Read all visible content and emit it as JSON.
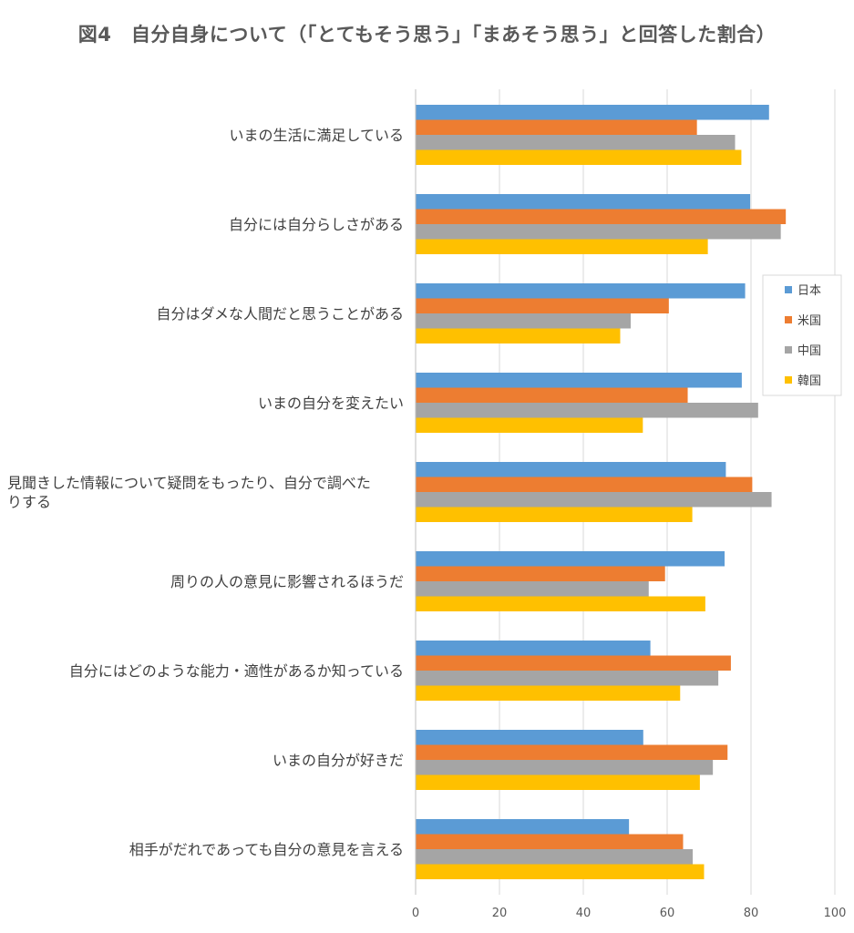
{
  "chart_data": {
    "type": "bar",
    "orientation": "horizontal",
    "title": "図4　自分自身について（「とてもそう思う」「まあそう思う」と回答した割合）",
    "xlabel": "",
    "ylabel": "",
    "xlim": [
      0,
      100
    ],
    "x_ticks": [
      0,
      20,
      40,
      60,
      80,
      100
    ],
    "grid": true,
    "legend_position": "right",
    "categories": [
      [
        "いまの生活に満足している"
      ],
      [
        "自分には自分らしさがある"
      ],
      [
        "自分はダメな人間だと思うことがある"
      ],
      [
        "いまの自分を変えたい"
      ],
      [
        "見聞きした情報について疑問をもったり、自分で調べた",
        "りする"
      ],
      [
        "周りの人の意見に影響されるほうだ"
      ],
      [
        "自分にはどのような能力・適性があるか知っている"
      ],
      [
        "いまの自分が好きだ"
      ],
      [
        "相手がだれであっても自分の意見を言える"
      ]
    ],
    "series": [
      {
        "name": "日本",
        "color": "#5B9BD5",
        "values": [
          84.3,
          79.8,
          78.6,
          77.8,
          74.0,
          73.7,
          56.0,
          54.3,
          50.9
        ]
      },
      {
        "name": "米国",
        "color": "#ED7D31",
        "values": [
          67.1,
          88.3,
          60.4,
          64.9,
          80.3,
          59.5,
          75.2,
          74.4,
          63.8
        ]
      },
      {
        "name": "中国",
        "color": "#A5A5A5",
        "values": [
          76.2,
          87.1,
          51.3,
          81.7,
          84.9,
          55.6,
          72.2,
          70.9,
          66.1
        ]
      },
      {
        "name": "韓国",
        "color": "#FFC000",
        "values": [
          77.7,
          69.7,
          48.8,
          54.2,
          66.0,
          69.1,
          63.1,
          67.8,
          68.8
        ]
      }
    ]
  }
}
